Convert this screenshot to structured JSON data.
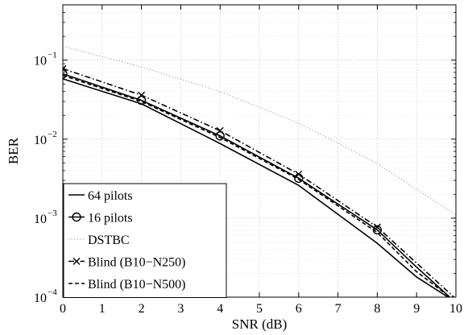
{
  "chart_data": {
    "type": "line",
    "xlabel": "SNR (dB)",
    "ylabel": "BER",
    "xlim": [
      0,
      10
    ],
    "ylim_log10": [
      -4,
      -0.3
    ],
    "yscale": "log",
    "grid": true,
    "legend_position": "bottom-left",
    "x_ticks": [
      "0",
      "1",
      "2",
      "3",
      "4",
      "5",
      "6",
      "7",
      "8",
      "9",
      "10"
    ],
    "y_ticks": [
      {
        "exp": -4,
        "base": "10",
        "sup": "−4"
      },
      {
        "exp": -3,
        "base": "10",
        "sup": "−3"
      },
      {
        "exp": -2,
        "base": "10",
        "sup": "−2"
      },
      {
        "exp": -1,
        "base": "10",
        "sup": "−1"
      }
    ],
    "series": [
      {
        "name": "64 pilots",
        "color": "#000000",
        "style": "solid",
        "marker": "none",
        "x": [
          0,
          2,
          4,
          6,
          8,
          9,
          9.8
        ],
        "y": [
          0.058,
          0.028,
          0.0088,
          0.0026,
          0.00048,
          0.00018,
          0.0001
        ]
      },
      {
        "name": "16 pilots",
        "color": "#000000",
        "style": "solid",
        "marker": "circle",
        "x": [
          0,
          2,
          4,
          6,
          8,
          9,
          10
        ],
        "y": [
          0.067,
          0.031,
          0.011,
          0.0032,
          0.00071,
          0.00024,
          8.5e-05
        ]
      },
      {
        "name": "DSTBC",
        "color": "#9a9a9a",
        "style": "dotted",
        "marker": "none",
        "x": [
          0,
          2,
          4,
          6,
          8,
          10
        ],
        "y": [
          0.15,
          0.082,
          0.04,
          0.016,
          0.0049,
          0.0011
        ]
      },
      {
        "name": "Blind (B10−N250)",
        "color": "#000000",
        "style": "dashdot",
        "marker": "x",
        "x": [
          0,
          2,
          4,
          6,
          8,
          9,
          10
        ],
        "y": [
          0.078,
          0.036,
          0.0128,
          0.0036,
          0.00077,
          0.00027,
          9.5e-05
        ]
      },
      {
        "name": "Blind (B10−N500)",
        "color": "#000000",
        "style": "dashed",
        "marker": "none",
        "x": [
          0,
          2,
          4,
          6,
          8,
          9,
          10
        ],
        "y": [
          0.064,
          0.03,
          0.0105,
          0.0031,
          0.00066,
          0.00021,
          8.8e-05
        ]
      }
    ]
  }
}
